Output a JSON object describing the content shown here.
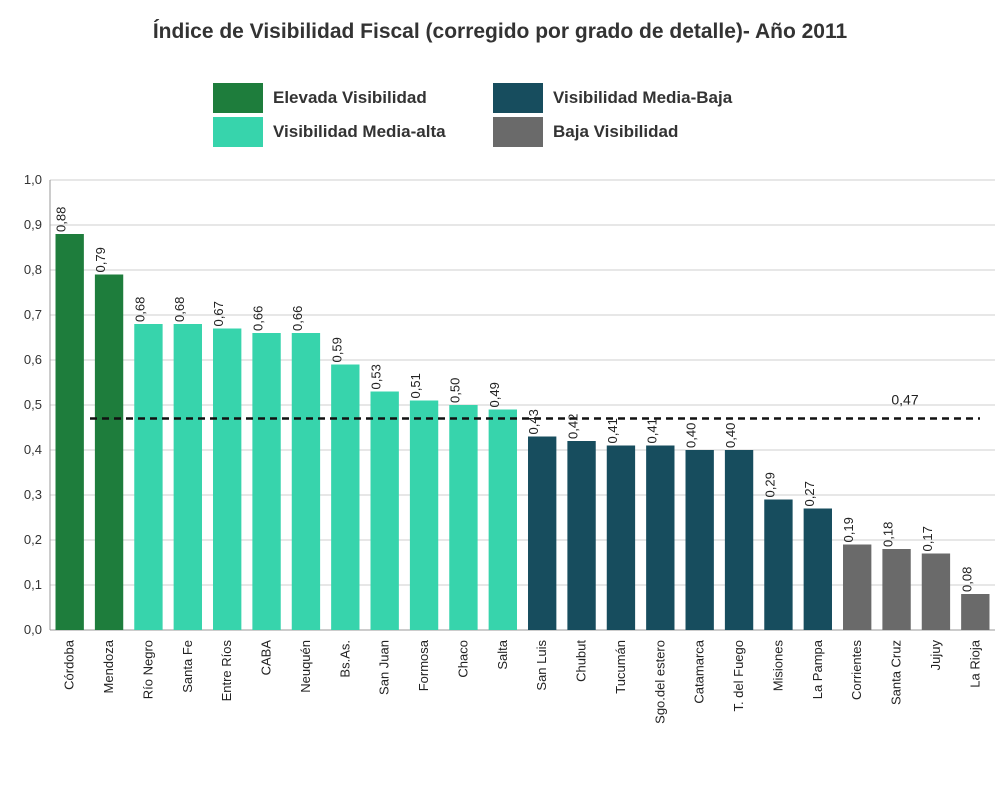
{
  "chart_data": {
    "type": "bar",
    "title": "Índice de Visibilidad Fiscal (corregido por grado de detalle)- Año 2011",
    "xlabel": "",
    "ylabel": "",
    "ylim": [
      0,
      1
    ],
    "yticks": [
      "0,0",
      "0,1",
      "0,2",
      "0,3",
      "0,4",
      "0,5",
      "0,6",
      "0,7",
      "0,8",
      "0,9",
      "1,0"
    ],
    "grid": true,
    "legend_position": "top",
    "legend": [
      {
        "label": "Elevada Visibilidad",
        "color": "#1e7d3c"
      },
      {
        "label": "Visibilidad Media-alta",
        "color": "#37d4ac"
      },
      {
        "label": "Visibilidad Media-Baja",
        "color": "#174d5e"
      },
      {
        "label": "Baja Visibilidad",
        "color": "#6a6a6a"
      }
    ],
    "reference_line": {
      "value": 0.47,
      "label": "0,47"
    },
    "categories": [
      "Córdoba",
      "Mendoza",
      "Río Negro",
      "Santa Fe",
      "Entre Ríos",
      "CABA",
      "Neuquén",
      "Bs.As.",
      "San Juan",
      "Formosa",
      "Chaco",
      "Salta",
      "San Luis",
      "Chubut",
      "Tucumán",
      "Sgo.del estero",
      "Catamarca",
      "T. del Fuego",
      "Misiones",
      "La Pampa",
      "Corrientes",
      "Santa Cruz",
      "Jujuy",
      "La Rioja"
    ],
    "values": [
      0.88,
      0.79,
      0.68,
      0.68,
      0.67,
      0.66,
      0.66,
      0.59,
      0.53,
      0.51,
      0.5,
      0.49,
      0.43,
      0.42,
      0.41,
      0.41,
      0.4,
      0.4,
      0.29,
      0.27,
      0.19,
      0.18,
      0.17,
      0.08
    ],
    "value_labels": [
      "0,88",
      "0,79",
      "0,68",
      "0,68",
      "0,67",
      "0,66",
      "0,66",
      "0,59",
      "0,53",
      "0,51",
      "0,50",
      "0,49",
      "0,43",
      "0,42",
      "0,41",
      "0,41",
      "0,40",
      "0,40",
      "0,29",
      "0,27",
      "0,19",
      "0,18",
      "0,17",
      "0,08"
    ],
    "groups": [
      0,
      0,
      1,
      1,
      1,
      1,
      1,
      1,
      1,
      1,
      1,
      1,
      2,
      2,
      2,
      2,
      2,
      2,
      2,
      2,
      3,
      3,
      3,
      3
    ]
  }
}
